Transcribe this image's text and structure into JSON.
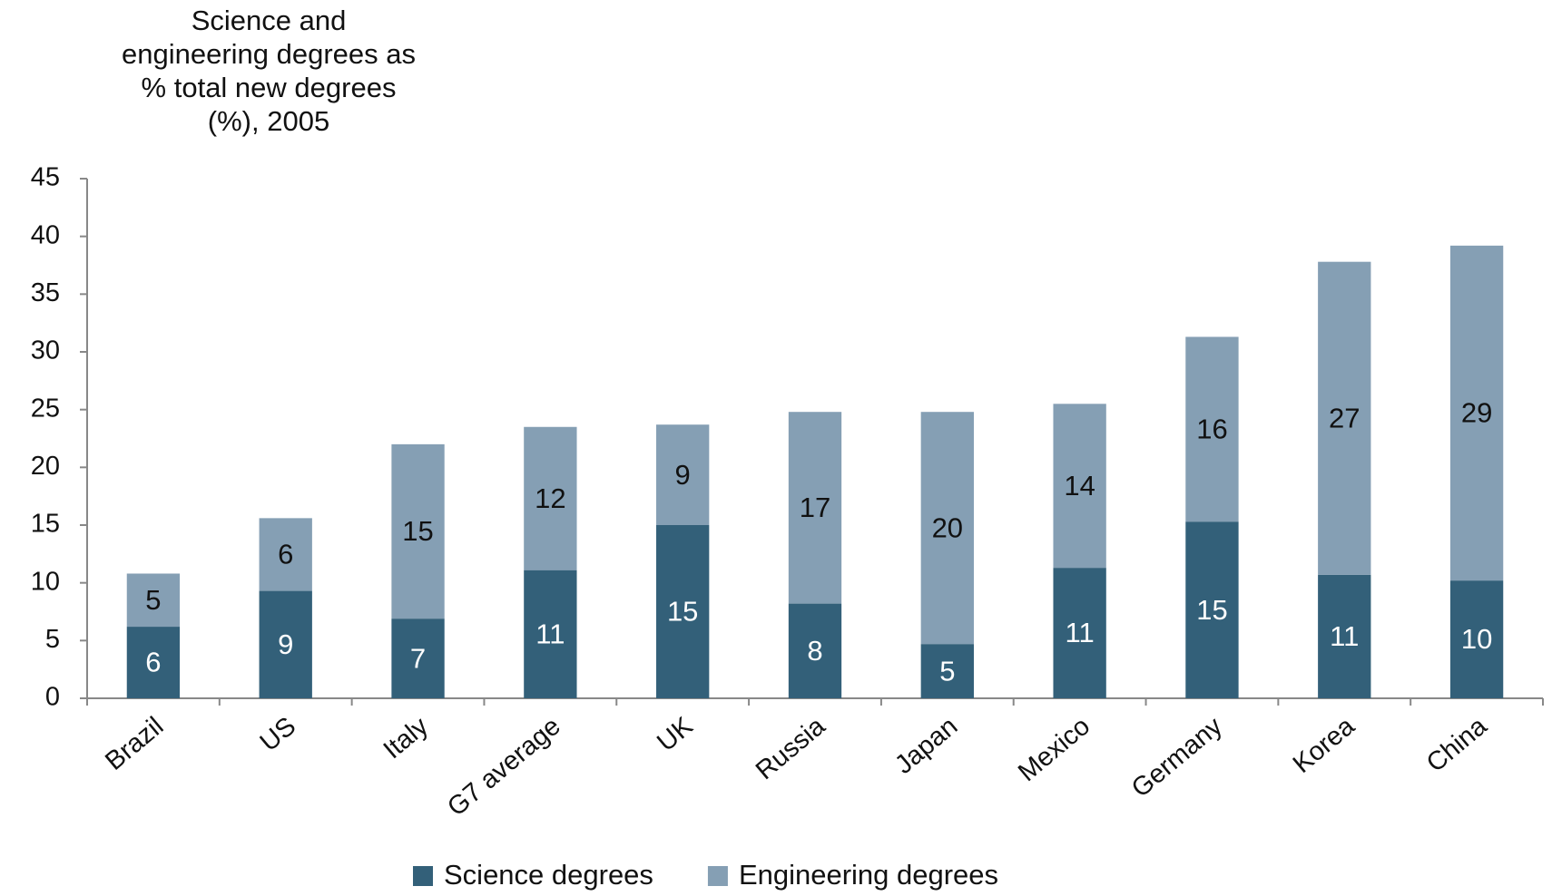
{
  "chart_data": {
    "type": "stacked_bar",
    "title": "Science and engineering degrees as % total new degrees (%), 2005",
    "categories": [
      "Brazil",
      "US",
      "Italy",
      "G7 average",
      "UK",
      "Russia",
      "Japan",
      "Mexico",
      "Germany",
      "Korea",
      "China"
    ],
    "series": [
      {
        "name": "Science degrees",
        "color": "#336079",
        "values": [
          6.2,
          9.3,
          6.9,
          11.1,
          15,
          8.2,
          4.7,
          11.3,
          15.3,
          10.7,
          10.2
        ],
        "value_labels": [
          "6",
          "9",
          "7",
          "11",
          "15",
          "8",
          "5",
          "11",
          "15",
          "11",
          "10"
        ]
      },
      {
        "name": "Engineering degrees",
        "color": "#859fb4",
        "values": [
          4.6,
          6.3,
          15.1,
          12.4,
          8.7,
          16.6,
          20.1,
          14.2,
          16,
          27.1,
          29
        ],
        "value_labels": [
          "5",
          "6",
          "15",
          "12",
          "9",
          "17",
          "20",
          "14",
          "16",
          "27",
          "29"
        ]
      }
    ],
    "ylim": [
      0,
      45
    ],
    "yticks": [
      0,
      5,
      10,
      15,
      20,
      25,
      30,
      35,
      40,
      45
    ],
    "grid": false
  }
}
